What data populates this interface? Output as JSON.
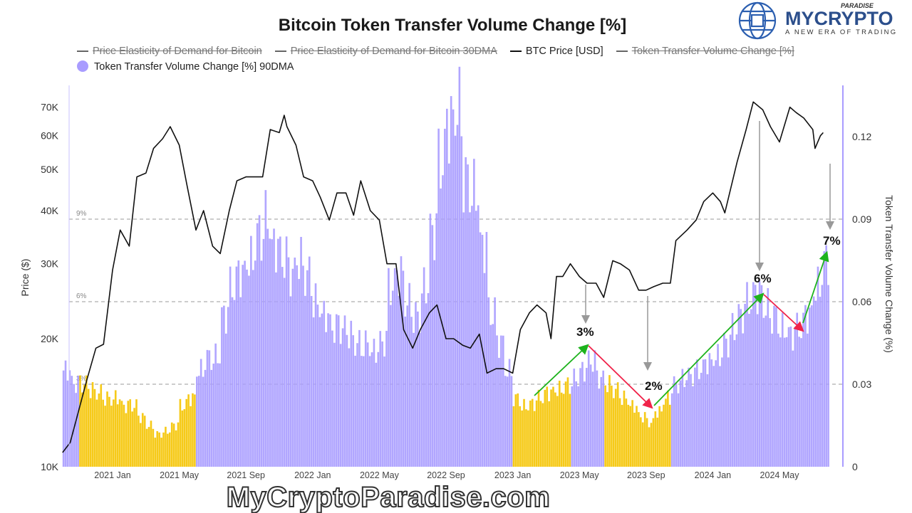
{
  "logo": {
    "brand_main": "MYCRYPTO",
    "brand_top": "PARADISE",
    "tagline": "A NEW ERA OF TRADING"
  },
  "watermark": "MyCryptoParadise.com",
  "chart_data": {
    "type": "bar+line",
    "title": "Bitcoin Token Transfer Volume Change [%]",
    "legend": [
      {
        "label": "Price Elasticity of Demand for Bitcoin",
        "hidden": true
      },
      {
        "label": "Price Elasticity of Demand for Bitcoin 30DMA",
        "hidden": true
      },
      {
        "label": "BTC Price [USD]",
        "hidden": false
      },
      {
        "label": "Token Transfer Volume Change [%]",
        "hidden": true
      },
      {
        "label": "Token Transfer Volume Change [%] 90DMA",
        "hidden": false
      }
    ],
    "legend_placement": "top-left",
    "ylabel_left": "Price ($)",
    "ylabel_right": "Token Transfer Volume Change (%)",
    "y_left_scale": "log",
    "y_left_ticks": [
      "10K",
      "20K",
      "30K",
      "40K",
      "50K",
      "60K",
      "70K"
    ],
    "y_left_tick_values": [
      10000,
      20000,
      30000,
      40000,
      50000,
      60000,
      70000
    ],
    "y_right_ticks": [
      "0",
      "0.03",
      "0.06",
      "0.09",
      "0.12"
    ],
    "y_right_tick_values": [
      0,
      0.03,
      0.06,
      0.09,
      0.12
    ],
    "x_ticks": [
      "2021 Jan",
      "2021 May",
      "2021 Sep",
      "2022 Jan",
      "2022 May",
      "2022 Sep",
      "2023 Jan",
      "2023 May",
      "2023 Sep",
      "2024 Jan",
      "2024 May"
    ],
    "x_tick_dates": [
      "2021-01",
      "2021-05",
      "2021-09",
      "2022-01",
      "2022-05",
      "2022-09",
      "2023-01",
      "2023-05",
      "2023-09",
      "2024-01",
      "2024-05"
    ],
    "reference_lines": [
      {
        "label": "9%",
        "value": 0.09
      },
      {
        "label": "6%",
        "value": 0.06
      },
      {
        "label": "3%",
        "value": 0.03
      }
    ],
    "colors": {
      "price": "#111111",
      "bars": "#a99cff",
      "bars_highlight": "#f5c400",
      "up_arrow": "#1db31d",
      "down_arrow": "#f0234a",
      "pointer": "#999999"
    },
    "highlight_ranges": [
      [
        "2020-11-01",
        "2021-06-01"
      ],
      [
        "2023-01-01",
        "2023-04-15"
      ],
      [
        "2023-06-10",
        "2023-10-15"
      ]
    ],
    "bars_start": "2020-10-01",
    "bars_step": "half-month",
    "bars_90dma": [
      0.035,
      0.03,
      0.03,
      0.028,
      0.027,
      0.025,
      0.025,
      0.022,
      0.022,
      0.018,
      0.015,
      0.012,
      0.013,
      0.015,
      0.022,
      0.025,
      0.035,
      0.04,
      0.04,
      0.055,
      0.065,
      0.07,
      0.075,
      0.085,
      0.09,
      0.08,
      0.075,
      0.07,
      0.075,
      0.07,
      0.06,
      0.055,
      0.05,
      0.05,
      0.048,
      0.045,
      0.045,
      0.042,
      0.045,
      0.065,
      0.07,
      0.06,
      0.055,
      0.065,
      0.085,
      0.11,
      0.125,
      0.13,
      0.105,
      0.1,
      0.08,
      0.055,
      0.045,
      0.035,
      0.025,
      0.022,
      0.023,
      0.025,
      0.027,
      0.028,
      0.03,
      0.032,
      0.035,
      0.038,
      0.032,
      0.03,
      0.028,
      0.025,
      0.022,
      0.018,
      0.016,
      0.02,
      0.025,
      0.03,
      0.032,
      0.033,
      0.035,
      0.038,
      0.04,
      0.045,
      0.05,
      0.055,
      0.06,
      0.063,
      0.058,
      0.055,
      0.05,
      0.048,
      0.05,
      0.055,
      0.065,
      0.075
    ],
    "btc_price": [
      [
        "2020-10-01",
        10800
      ],
      [
        "2020-10-15",
        11400
      ],
      [
        "2020-11-01",
        13700
      ],
      [
        "2020-11-15",
        16000
      ],
      [
        "2020-12-01",
        19000
      ],
      [
        "2020-12-15",
        19400
      ],
      [
        "2021-01-01",
        29000
      ],
      [
        "2021-01-15",
        36000
      ],
      [
        "2021-02-01",
        33000
      ],
      [
        "2021-02-15",
        48000
      ],
      [
        "2021-03-01",
        49000
      ],
      [
        "2021-03-15",
        56000
      ],
      [
        "2021-04-01",
        59000
      ],
      [
        "2021-04-15",
        63000
      ],
      [
        "2021-05-01",
        57000
      ],
      [
        "2021-05-15",
        46000
      ],
      [
        "2021-06-01",
        36000
      ],
      [
        "2021-06-15",
        40000
      ],
      [
        "2021-07-01",
        33000
      ],
      [
        "2021-07-15",
        31700
      ],
      [
        "2021-08-01",
        40000
      ],
      [
        "2021-08-15",
        47000
      ],
      [
        "2021-09-01",
        48000
      ],
      [
        "2021-09-15",
        48000
      ],
      [
        "2021-10-01",
        48000
      ],
      [
        "2021-10-15",
        62000
      ],
      [
        "2021-11-01",
        61000
      ],
      [
        "2021-11-10",
        67000
      ],
      [
        "2021-11-15",
        63000
      ],
      [
        "2021-12-01",
        57000
      ],
      [
        "2021-12-15",
        48000
      ],
      [
        "2022-01-01",
        47000
      ],
      [
        "2022-01-15",
        43000
      ],
      [
        "2022-02-01",
        38000
      ],
      [
        "2022-02-15",
        44000
      ],
      [
        "2022-03-01",
        44000
      ],
      [
        "2022-03-15",
        39000
      ],
      [
        "2022-03-28",
        47000
      ],
      [
        "2022-04-15",
        40000
      ],
      [
        "2022-05-01",
        38000
      ],
      [
        "2022-05-15",
        30000
      ],
      [
        "2022-06-01",
        30000
      ],
      [
        "2022-06-15",
        21000
      ],
      [
        "2022-07-01",
        19000
      ],
      [
        "2022-07-15",
        21000
      ],
      [
        "2022-08-01",
        23000
      ],
      [
        "2022-08-15",
        24000
      ],
      [
        "2022-09-01",
        20000
      ],
      [
        "2022-09-15",
        20000
      ],
      [
        "2022-10-01",
        19300
      ],
      [
        "2022-10-15",
        19000
      ],
      [
        "2022-11-01",
        20500
      ],
      [
        "2022-11-15",
        16600
      ],
      [
        "2022-12-01",
        17000
      ],
      [
        "2022-12-15",
        17000
      ],
      [
        "2023-01-01",
        16600
      ],
      [
        "2023-01-15",
        21000
      ],
      [
        "2023-02-01",
        23000
      ],
      [
        "2023-02-15",
        24000
      ],
      [
        "2023-03-01",
        23000
      ],
      [
        "2023-03-10",
        20000
      ],
      [
        "2023-03-20",
        28000
      ],
      [
        "2023-04-01",
        28000
      ],
      [
        "2023-04-15",
        30000
      ],
      [
        "2023-05-01",
        28000
      ],
      [
        "2023-05-15",
        27000
      ],
      [
        "2023-06-01",
        27000
      ],
      [
        "2023-06-15",
        25000
      ],
      [
        "2023-07-01",
        30500
      ],
      [
        "2023-07-15",
        30000
      ],
      [
        "2023-08-01",
        29000
      ],
      [
        "2023-08-18",
        26000
      ],
      [
        "2023-09-01",
        26000
      ],
      [
        "2023-09-15",
        26500
      ],
      [
        "2023-10-01",
        27000
      ],
      [
        "2023-10-15",
        27000
      ],
      [
        "2023-10-25",
        34000
      ],
      [
        "2023-11-15",
        36000
      ],
      [
        "2023-12-01",
        38000
      ],
      [
        "2023-12-15",
        42000
      ],
      [
        "2024-01-01",
        44000
      ],
      [
        "2024-01-15",
        42000
      ],
      [
        "2024-01-23",
        39500
      ],
      [
        "2024-02-15",
        52000
      ],
      [
        "2024-03-01",
        62000
      ],
      [
        "2024-03-14",
        72000
      ],
      [
        "2024-04-01",
        69000
      ],
      [
        "2024-04-15",
        63000
      ],
      [
        "2024-05-01",
        58000
      ],
      [
        "2024-05-20",
        70000
      ],
      [
        "2024-06-01",
        68000
      ],
      [
        "2024-06-15",
        66000
      ],
      [
        "2024-07-01",
        62000
      ],
      [
        "2024-07-05",
        56000
      ],
      [
        "2024-07-15",
        60000
      ],
      [
        "2024-07-20",
        61000
      ]
    ],
    "annotations": [
      {
        "label": "3%"
      },
      {
        "label": "2%"
      },
      {
        "label": "6%"
      },
      {
        "label": "7%"
      }
    ]
  }
}
